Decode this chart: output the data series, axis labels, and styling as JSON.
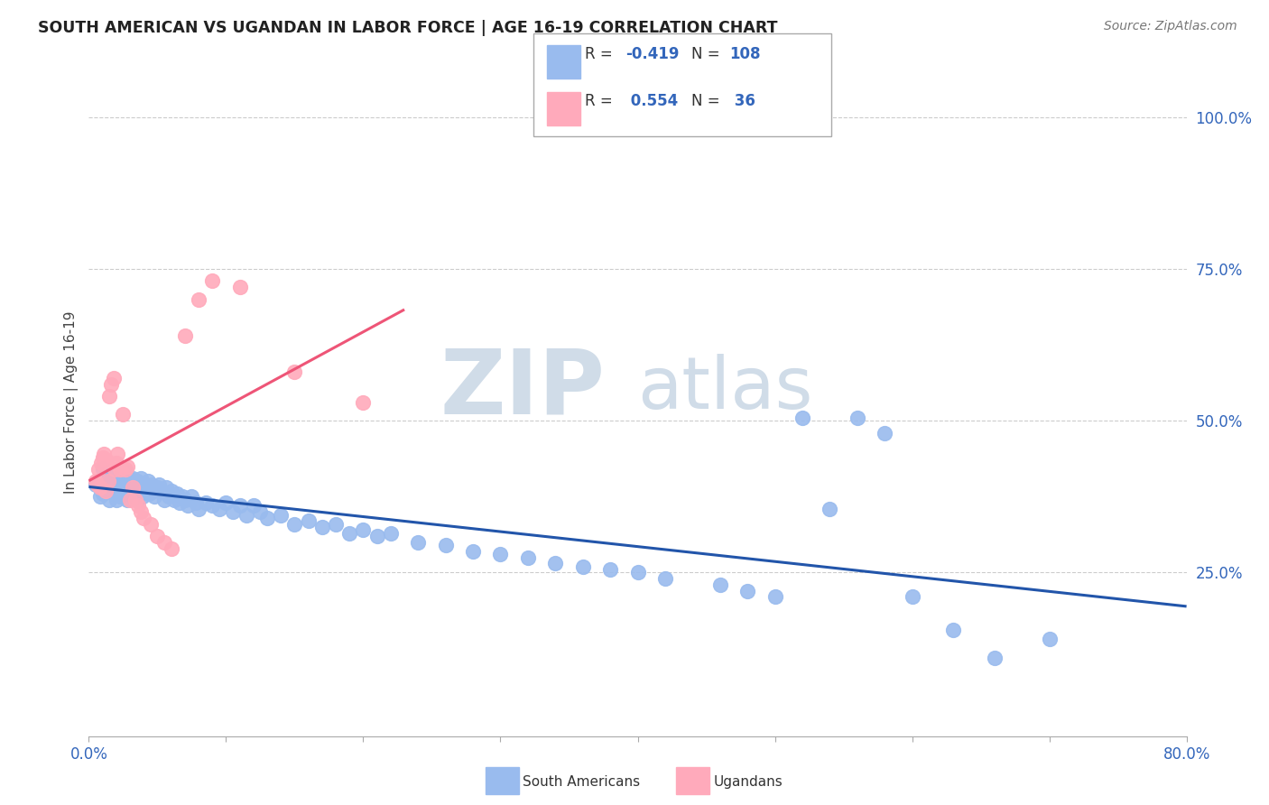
{
  "title": "SOUTH AMERICAN VS UGANDAN IN LABOR FORCE | AGE 16-19 CORRELATION CHART",
  "source": "Source: ZipAtlas.com",
  "ylabel": "In Labor Force | Age 16-19",
  "ytick_labels": [
    "100.0%",
    "75.0%",
    "50.0%",
    "25.0%"
  ],
  "ytick_values": [
    1.0,
    0.75,
    0.5,
    0.25
  ],
  "xlim": [
    0.0,
    0.8
  ],
  "ylim": [
    -0.02,
    1.08
  ],
  "R_blue": -0.419,
  "N_blue": 108,
  "R_pink": 0.554,
  "N_pink": 36,
  "blue_color": "#99BBEE",
  "pink_color": "#FFAABB",
  "trendline_blue": "#2255AA",
  "trendline_pink": "#EE5577",
  "watermark_zip": "ZIP",
  "watermark_atlas": "atlas",
  "watermark_color_zip": "#C8D8E8",
  "watermark_color_atlas": "#C8D8E8",
  "blue_scatter_x": [
    0.005,
    0.008,
    0.01,
    0.01,
    0.012,
    0.013,
    0.014,
    0.015,
    0.015,
    0.016,
    0.017,
    0.018,
    0.018,
    0.019,
    0.02,
    0.02,
    0.02,
    0.021,
    0.022,
    0.022,
    0.023,
    0.023,
    0.024,
    0.025,
    0.025,
    0.026,
    0.027,
    0.027,
    0.028,
    0.028,
    0.029,
    0.03,
    0.03,
    0.031,
    0.032,
    0.033,
    0.034,
    0.035,
    0.035,
    0.036,
    0.037,
    0.038,
    0.039,
    0.04,
    0.041,
    0.042,
    0.043,
    0.044,
    0.045,
    0.046,
    0.047,
    0.048,
    0.05,
    0.051,
    0.053,
    0.055,
    0.056,
    0.058,
    0.06,
    0.062,
    0.064,
    0.066,
    0.068,
    0.07,
    0.072,
    0.075,
    0.078,
    0.08,
    0.085,
    0.09,
    0.095,
    0.1,
    0.105,
    0.11,
    0.115,
    0.12,
    0.125,
    0.13,
    0.14,
    0.15,
    0.16,
    0.17,
    0.18,
    0.19,
    0.2,
    0.21,
    0.22,
    0.24,
    0.26,
    0.28,
    0.3,
    0.32,
    0.34,
    0.36,
    0.38,
    0.4,
    0.42,
    0.46,
    0.48,
    0.5,
    0.52,
    0.54,
    0.56,
    0.58,
    0.6,
    0.63,
    0.66,
    0.7
  ],
  "blue_scatter_y": [
    0.395,
    0.375,
    0.42,
    0.38,
    0.39,
    0.385,
    0.4,
    0.41,
    0.37,
    0.395,
    0.385,
    0.405,
    0.39,
    0.38,
    0.415,
    0.4,
    0.37,
    0.395,
    0.405,
    0.385,
    0.395,
    0.375,
    0.39,
    0.41,
    0.38,
    0.4,
    0.415,
    0.38,
    0.395,
    0.37,
    0.405,
    0.39,
    0.38,
    0.395,
    0.405,
    0.385,
    0.395,
    0.4,
    0.37,
    0.39,
    0.395,
    0.405,
    0.375,
    0.39,
    0.395,
    0.385,
    0.4,
    0.38,
    0.39,
    0.395,
    0.385,
    0.375,
    0.39,
    0.395,
    0.385,
    0.37,
    0.39,
    0.375,
    0.385,
    0.37,
    0.38,
    0.365,
    0.375,
    0.37,
    0.36,
    0.375,
    0.365,
    0.355,
    0.365,
    0.36,
    0.355,
    0.365,
    0.35,
    0.36,
    0.345,
    0.36,
    0.35,
    0.34,
    0.345,
    0.33,
    0.335,
    0.325,
    0.33,
    0.315,
    0.32,
    0.31,
    0.315,
    0.3,
    0.295,
    0.285,
    0.28,
    0.275,
    0.265,
    0.26,
    0.255,
    0.25,
    0.24,
    0.23,
    0.22,
    0.21,
    0.505,
    0.355,
    0.505,
    0.48,
    0.21,
    0.155,
    0.11,
    0.14
  ],
  "pink_scatter_x": [
    0.005,
    0.006,
    0.007,
    0.008,
    0.009,
    0.01,
    0.011,
    0.012,
    0.013,
    0.014,
    0.015,
    0.016,
    0.018,
    0.019,
    0.02,
    0.021,
    0.023,
    0.025,
    0.027,
    0.028,
    0.03,
    0.032,
    0.034,
    0.036,
    0.038,
    0.04,
    0.045,
    0.05,
    0.055,
    0.06,
    0.07,
    0.08,
    0.09,
    0.11,
    0.15,
    0.2
  ],
  "pink_scatter_y": [
    0.4,
    0.395,
    0.42,
    0.39,
    0.43,
    0.44,
    0.445,
    0.385,
    0.435,
    0.4,
    0.54,
    0.56,
    0.57,
    0.42,
    0.43,
    0.445,
    0.42,
    0.51,
    0.42,
    0.425,
    0.37,
    0.39,
    0.37,
    0.36,
    0.35,
    0.34,
    0.33,
    0.31,
    0.3,
    0.29,
    0.64,
    0.7,
    0.73,
    0.72,
    0.58,
    0.53
  ],
  "pink_trendline_x0": 0.0,
  "pink_trendline_x1": 0.23,
  "blue_trendline_x0": 0.0,
  "blue_trendline_x1": 0.8
}
